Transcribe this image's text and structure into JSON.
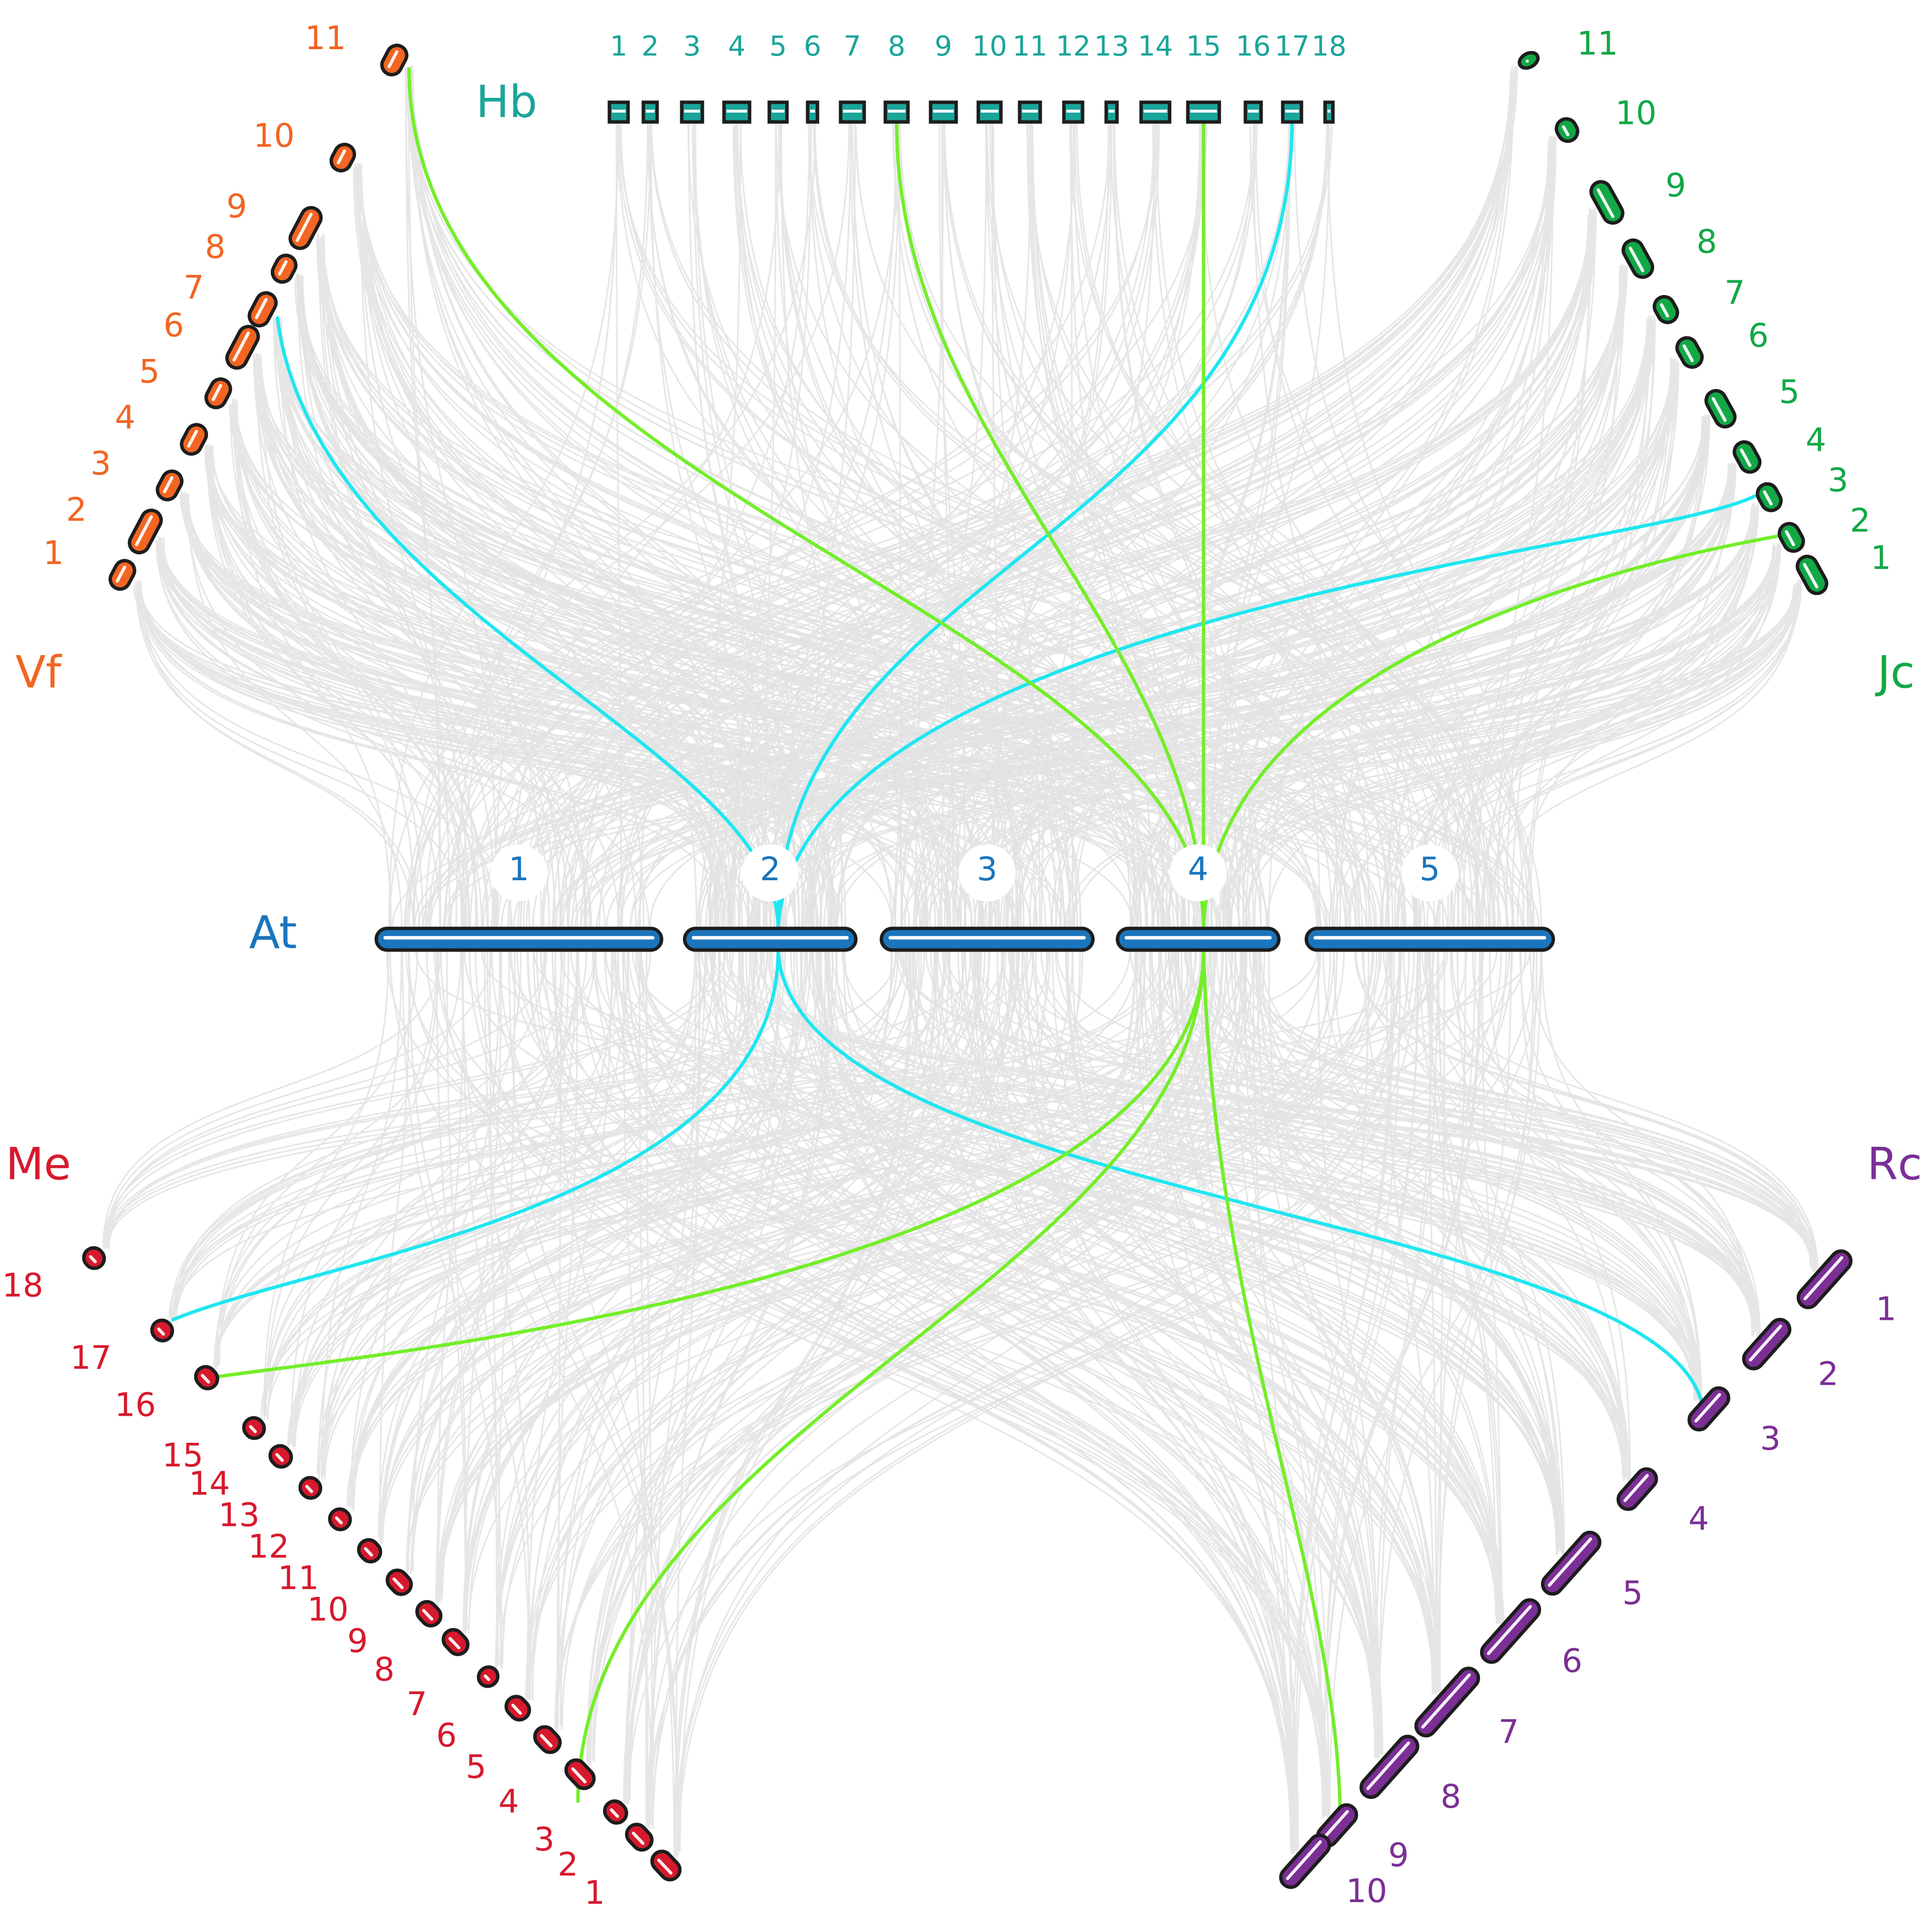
{
  "species": {
    "hb": {
      "label": "Hb",
      "color": "#1aa59a",
      "chromosomes": [
        "1",
        "2",
        "3",
        "4",
        "5",
        "6",
        "7",
        "8",
        "9",
        "10",
        "11",
        "12",
        "13",
        "14",
        "15",
        "16",
        "17",
        "18"
      ]
    },
    "vf": {
      "label": "Vf",
      "color": "#f26522",
      "chromosomes": [
        "1",
        "2",
        "3",
        "4",
        "5",
        "6",
        "7",
        "8",
        "9",
        "10",
        "11"
      ]
    },
    "jc": {
      "label": "Jc",
      "color": "#12a846",
      "chromosomes": [
        "1",
        "2",
        "3",
        "4",
        "5",
        "6",
        "7",
        "8",
        "9",
        "10",
        "11"
      ]
    },
    "at": {
      "label": "At",
      "color": "#1b75bc",
      "chromosomes": [
        "1",
        "2",
        "3",
        "4",
        "5"
      ]
    },
    "me": {
      "label": "Me",
      "color": "#d7192d",
      "chromosomes": [
        "1",
        "2",
        "3",
        "4",
        "5",
        "6",
        "7",
        "8",
        "9",
        "10",
        "11",
        "12",
        "13",
        "14",
        "15",
        "16",
        "17",
        "18"
      ]
    },
    "rc": {
      "label": "Rc",
      "color": "#7b2f95",
      "chromosomes": [
        "1",
        "2",
        "3",
        "4",
        "5",
        "6",
        "7",
        "8",
        "9",
        "10"
      ]
    }
  },
  "link_colors": {
    "background": "#e2e2e2",
    "cyan": "#1fe6f0",
    "green": "#74ee2a"
  }
}
